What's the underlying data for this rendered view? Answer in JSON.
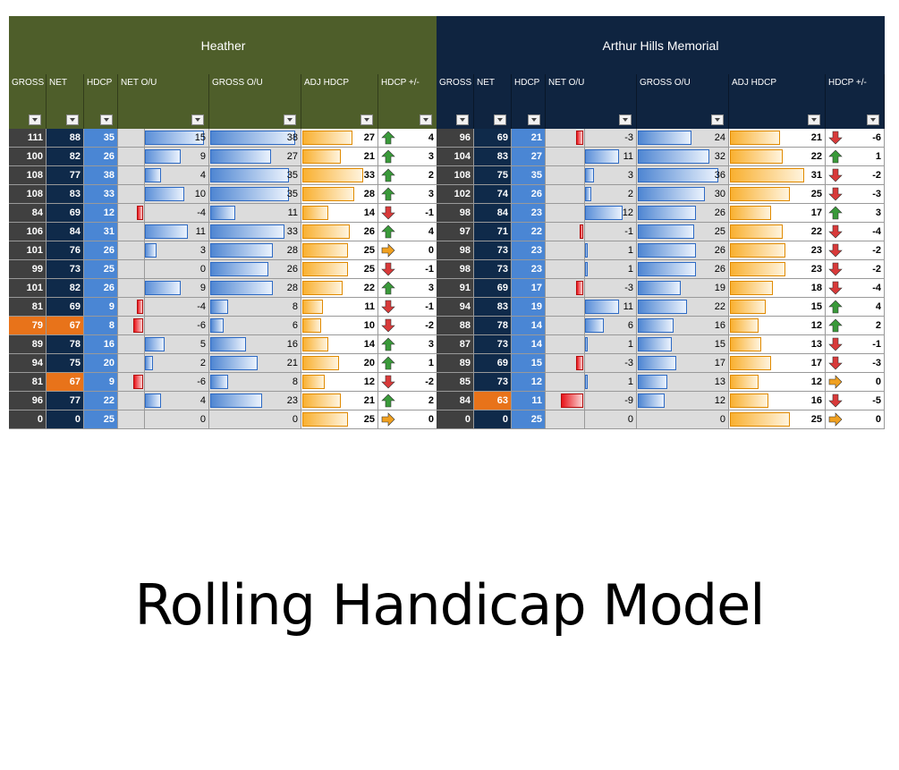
{
  "title": "Rolling Handicap Model",
  "colors": {
    "heather": "#4e5e2a",
    "arthur": "#0f2440",
    "gross": "#404040",
    "net": "#0f2a4a",
    "hdcp": "#4a86d4",
    "highlight": "#e8731a",
    "up": "#3a9a3a",
    "down": "#d93a3a",
    "flat": "#f0a020"
  },
  "column_headers": [
    "GROSS",
    "NET",
    "HDCP",
    "NET O/U",
    "GROSS O/U",
    "ADJ HDCP",
    "HDCP +/-"
  ],
  "courses": [
    {
      "name": "Heather",
      "rows": [
        {
          "gross": 111,
          "net": 88,
          "hdcp": 35,
          "net_ou": 15,
          "gross_ou": 38,
          "adj": 27,
          "dir": "up",
          "delta": "4"
        },
        {
          "gross": 100,
          "net": 82,
          "hdcp": 26,
          "net_ou": 9,
          "gross_ou": 27,
          "adj": 21,
          "dir": "up",
          "delta": "3"
        },
        {
          "gross": 108,
          "net": 77,
          "hdcp": 38,
          "net_ou": 4,
          "gross_ou": 35,
          "adj": 33,
          "dir": "up",
          "delta": "2"
        },
        {
          "gross": 108,
          "net": 83,
          "hdcp": 33,
          "net_ou": 10,
          "gross_ou": 35,
          "adj": 28,
          "dir": "up",
          "delta": "3"
        },
        {
          "gross": 84,
          "net": 69,
          "hdcp": 12,
          "net_ou": -4,
          "gross_ou": 11,
          "adj": 14,
          "dir": "down",
          "delta": "-1"
        },
        {
          "gross": 106,
          "net": 84,
          "hdcp": 31,
          "net_ou": 11,
          "gross_ou": 33,
          "adj": 26,
          "dir": "up",
          "delta": "4"
        },
        {
          "gross": 101,
          "net": 76,
          "hdcp": 26,
          "net_ou": 3,
          "gross_ou": 28,
          "adj": 25,
          "dir": "flat",
          "delta": "0"
        },
        {
          "gross": 99,
          "net": 73,
          "hdcp": 25,
          "net_ou": 0,
          "gross_ou": 26,
          "adj": 25,
          "dir": "down",
          "delta": "-1"
        },
        {
          "gross": 101,
          "net": 82,
          "hdcp": 26,
          "net_ou": 9,
          "gross_ou": 28,
          "adj": 22,
          "dir": "up",
          "delta": "3"
        },
        {
          "gross": 81,
          "net": 69,
          "hdcp": 9,
          "net_ou": -4,
          "gross_ou": 8,
          "adj": 11,
          "dir": "down",
          "delta": "-1"
        },
        {
          "gross": 79,
          "net": 67,
          "hdcp": 8,
          "net_ou": -6,
          "gross_ou": 6,
          "adj": 10,
          "dir": "down",
          "delta": "-2",
          "hl_gross": true,
          "hl_net": true
        },
        {
          "gross": 89,
          "net": 78,
          "hdcp": 16,
          "net_ou": 5,
          "gross_ou": 16,
          "adj": 14,
          "dir": "up",
          "delta": "3"
        },
        {
          "gross": 94,
          "net": 75,
          "hdcp": 20,
          "net_ou": 2,
          "gross_ou": 21,
          "adj": 20,
          "dir": "up",
          "delta": "1"
        },
        {
          "gross": 81,
          "net": 67,
          "hdcp": 9,
          "net_ou": -6,
          "gross_ou": 8,
          "adj": 12,
          "dir": "down",
          "delta": "-2",
          "hl_net": true
        },
        {
          "gross": 96,
          "net": 77,
          "hdcp": 22,
          "net_ou": 4,
          "gross_ou": 23,
          "adj": 21,
          "dir": "up",
          "delta": "2"
        },
        {
          "gross": 0,
          "net": 0,
          "hdcp": 25,
          "net_ou": 0,
          "gross_ou": 0,
          "adj": 25,
          "dir": "flat",
          "delta": "0"
        }
      ]
    },
    {
      "name": "Arthur Hills Memorial",
      "rows": [
        {
          "gross": 96,
          "net": 69,
          "hdcp": 21,
          "net_ou": -3,
          "gross_ou": 24,
          "adj": 21,
          "dir": "down",
          "delta": "-6"
        },
        {
          "gross": 104,
          "net": 83,
          "hdcp": 27,
          "net_ou": 11,
          "gross_ou": 32,
          "adj": 22,
          "dir": "up",
          "delta": "1"
        },
        {
          "gross": 108,
          "net": 75,
          "hdcp": 35,
          "net_ou": 3,
          "gross_ou": 36,
          "adj": 31,
          "dir": "down",
          "delta": "-2"
        },
        {
          "gross": 102,
          "net": 74,
          "hdcp": 26,
          "net_ou": 2,
          "gross_ou": 30,
          "adj": 25,
          "dir": "down",
          "delta": "-3"
        },
        {
          "gross": 98,
          "net": 84,
          "hdcp": 23,
          "net_ou": 12,
          "gross_ou": 26,
          "adj": 17,
          "dir": "up",
          "delta": "3"
        },
        {
          "gross": 97,
          "net": 71,
          "hdcp": 22,
          "net_ou": -1,
          "gross_ou": 25,
          "adj": 22,
          "dir": "down",
          "delta": "-4"
        },
        {
          "gross": 98,
          "net": 73,
          "hdcp": 23,
          "net_ou": 1,
          "gross_ou": 26,
          "adj": 23,
          "dir": "down",
          "delta": "-2"
        },
        {
          "gross": 98,
          "net": 73,
          "hdcp": 23,
          "net_ou": 1,
          "gross_ou": 26,
          "adj": 23,
          "dir": "down",
          "delta": "-2"
        },
        {
          "gross": 91,
          "net": 69,
          "hdcp": 17,
          "net_ou": -3,
          "gross_ou": 19,
          "adj": 18,
          "dir": "down",
          "delta": "-4"
        },
        {
          "gross": 94,
          "net": 83,
          "hdcp": 19,
          "net_ou": 11,
          "gross_ou": 22,
          "adj": 15,
          "dir": "up",
          "delta": "4"
        },
        {
          "gross": 88,
          "net": 78,
          "hdcp": 14,
          "net_ou": 6,
          "gross_ou": 16,
          "adj": 12,
          "dir": "up",
          "delta": "2"
        },
        {
          "gross": 87,
          "net": 73,
          "hdcp": 14,
          "net_ou": 1,
          "gross_ou": 15,
          "adj": 13,
          "dir": "down",
          "delta": "-1"
        },
        {
          "gross": 89,
          "net": 69,
          "hdcp": 15,
          "net_ou": -3,
          "gross_ou": 17,
          "adj": 17,
          "dir": "down",
          "delta": "-3"
        },
        {
          "gross": 85,
          "net": 73,
          "hdcp": 12,
          "net_ou": 1,
          "gross_ou": 13,
          "adj": 12,
          "dir": "flat",
          "delta": "0"
        },
        {
          "gross": 84,
          "net": 63,
          "hdcp": 11,
          "net_ou": -9,
          "gross_ou": 12,
          "adj": 16,
          "dir": "down",
          "delta": "-5",
          "hl_net": true
        },
        {
          "gross": 0,
          "net": 0,
          "hdcp": 25,
          "net_ou": 0,
          "gross_ou": 0,
          "adj": 25,
          "dir": "flat",
          "delta": "0"
        }
      ]
    }
  ]
}
